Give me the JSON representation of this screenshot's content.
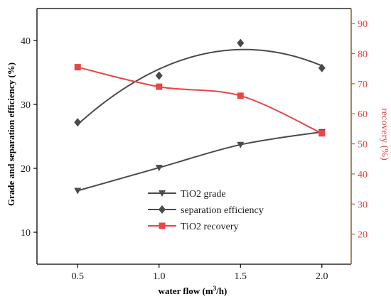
{
  "chart_data": {
    "type": "line",
    "x": [
      0.5,
      1.0,
      1.5,
      2.0
    ],
    "x_tick_labels": [
      "0.5",
      "1.0",
      "1.5",
      "2.0"
    ],
    "xlim": [
      0.25,
      2.18
    ],
    "xlabel": "water flow (m³/h)",
    "ylabel_left": "Grade and separation efficiency (%)",
    "ylim_left": [
      5,
      45
    ],
    "yticks_left": [
      10,
      20,
      30,
      40
    ],
    "ylabel_right": "recovery (%)",
    "ylim_right": [
      10,
      95
    ],
    "yticks_right": [
      20,
      30,
      40,
      50,
      60,
      70,
      80,
      90
    ],
    "colors": {
      "dark": "#4a4a4a",
      "red": "#e84545",
      "axis_right": "#8a6a3a"
    },
    "grid": false,
    "legend_position": "center",
    "series": [
      {
        "name": "TiO2 grade",
        "axis": "left",
        "marker": "triangle-down",
        "color": "#4a4a4a",
        "values": [
          16.5,
          20.1,
          23.7,
          25.7
        ]
      },
      {
        "name": "separation efficiency",
        "axis": "left",
        "marker": "diamond",
        "color": "#4a4a4a",
        "values": [
          27.2,
          34.5,
          39.6,
          35.7
        ]
      },
      {
        "name": "TiO2 recovery",
        "axis": "right",
        "marker": "square",
        "color": "#e84545",
        "values": [
          75.5,
          69.0,
          66.0,
          53.5
        ]
      }
    ]
  }
}
